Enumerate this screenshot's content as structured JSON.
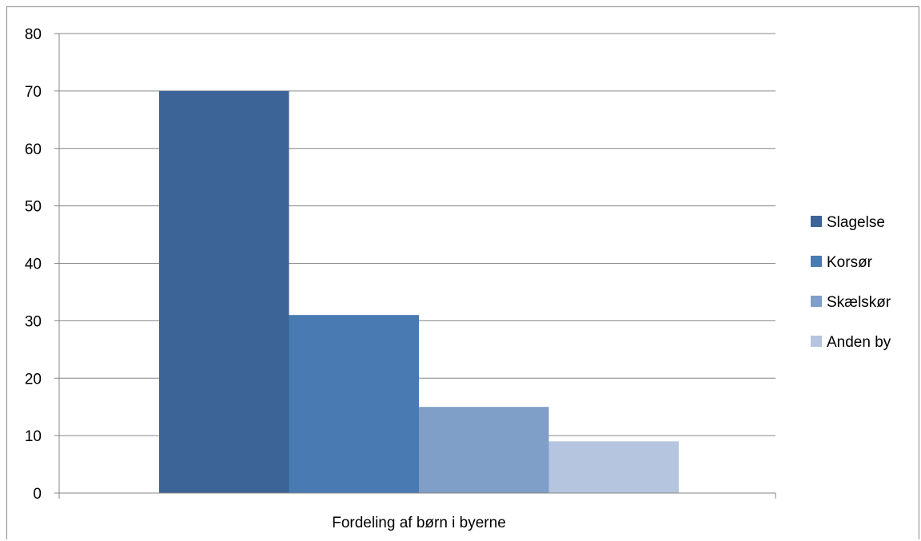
{
  "chart_data": {
    "type": "bar",
    "categories": [
      "Fordeling af børn i byerne"
    ],
    "series": [
      {
        "name": "Slagelse",
        "values": [
          70
        ],
        "color": "#3c6496"
      },
      {
        "name": "Korsør",
        "values": [
          31
        ],
        "color": "#4a7ab2"
      },
      {
        "name": "Skælskør",
        "values": [
          15
        ],
        "color": "#7f9ec8"
      },
      {
        "name": "Anden by",
        "values": [
          9
        ],
        "color": "#b5c5df"
      }
    ],
    "title": "",
    "xlabel": "",
    "ylabel": "",
    "ylim": [
      0,
      80
    ],
    "yticks": [
      0,
      10,
      20,
      30,
      40,
      50,
      60,
      70,
      80
    ],
    "grid": true,
    "legend_position": "right",
    "gridline_color": "#868686"
  }
}
